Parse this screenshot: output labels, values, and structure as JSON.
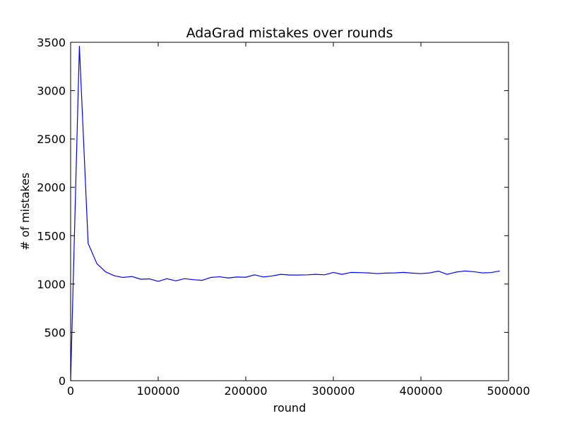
{
  "chart_data": {
    "type": "line",
    "title": "AdaGrad mistakes over rounds",
    "xlabel": "round",
    "ylabel": "# of mistakes",
    "xlim": [
      0,
      500000
    ],
    "ylim": [
      0,
      3500
    ],
    "x_ticks": [
      0,
      100000,
      200000,
      300000,
      400000,
      500000
    ],
    "x_tick_labels": [
      "0",
      "100000",
      "200000",
      "300000",
      "400000",
      "500000"
    ],
    "y_ticks": [
      0,
      500,
      1000,
      1500,
      2000,
      2500,
      3000,
      3500
    ],
    "y_tick_labels": [
      "0",
      "500",
      "1000",
      "1500",
      "2000",
      "2500",
      "3000",
      "3500"
    ],
    "grid": false,
    "legend": "none",
    "series": [
      {
        "color": "#0000ff",
        "x": [
          0,
          10000,
          20000,
          30000,
          40000,
          50000,
          60000,
          70000,
          80000,
          90000,
          100000,
          110000,
          120000,
          130000,
          140000,
          150000,
          160000,
          170000,
          180000,
          190000,
          200000,
          210000,
          220000,
          230000,
          240000,
          250000,
          260000,
          270000,
          280000,
          290000,
          300000,
          310000,
          320000,
          330000,
          340000,
          350000,
          360000,
          370000,
          380000,
          390000,
          400000,
          410000,
          420000,
          430000,
          440000,
          450000,
          460000,
          470000,
          480000,
          490000
        ],
        "y": [
          0,
          3460,
          1420,
          1210,
          1125,
          1085,
          1068,
          1078,
          1050,
          1053,
          1028,
          1055,
          1033,
          1055,
          1045,
          1038,
          1068,
          1075,
          1063,
          1073,
          1070,
          1095,
          1073,
          1083,
          1100,
          1093,
          1093,
          1095,
          1100,
          1095,
          1120,
          1100,
          1120,
          1118,
          1115,
          1108,
          1113,
          1115,
          1120,
          1113,
          1108,
          1115,
          1133,
          1100,
          1123,
          1135,
          1128,
          1115,
          1118,
          1135
        ]
      }
    ]
  }
}
